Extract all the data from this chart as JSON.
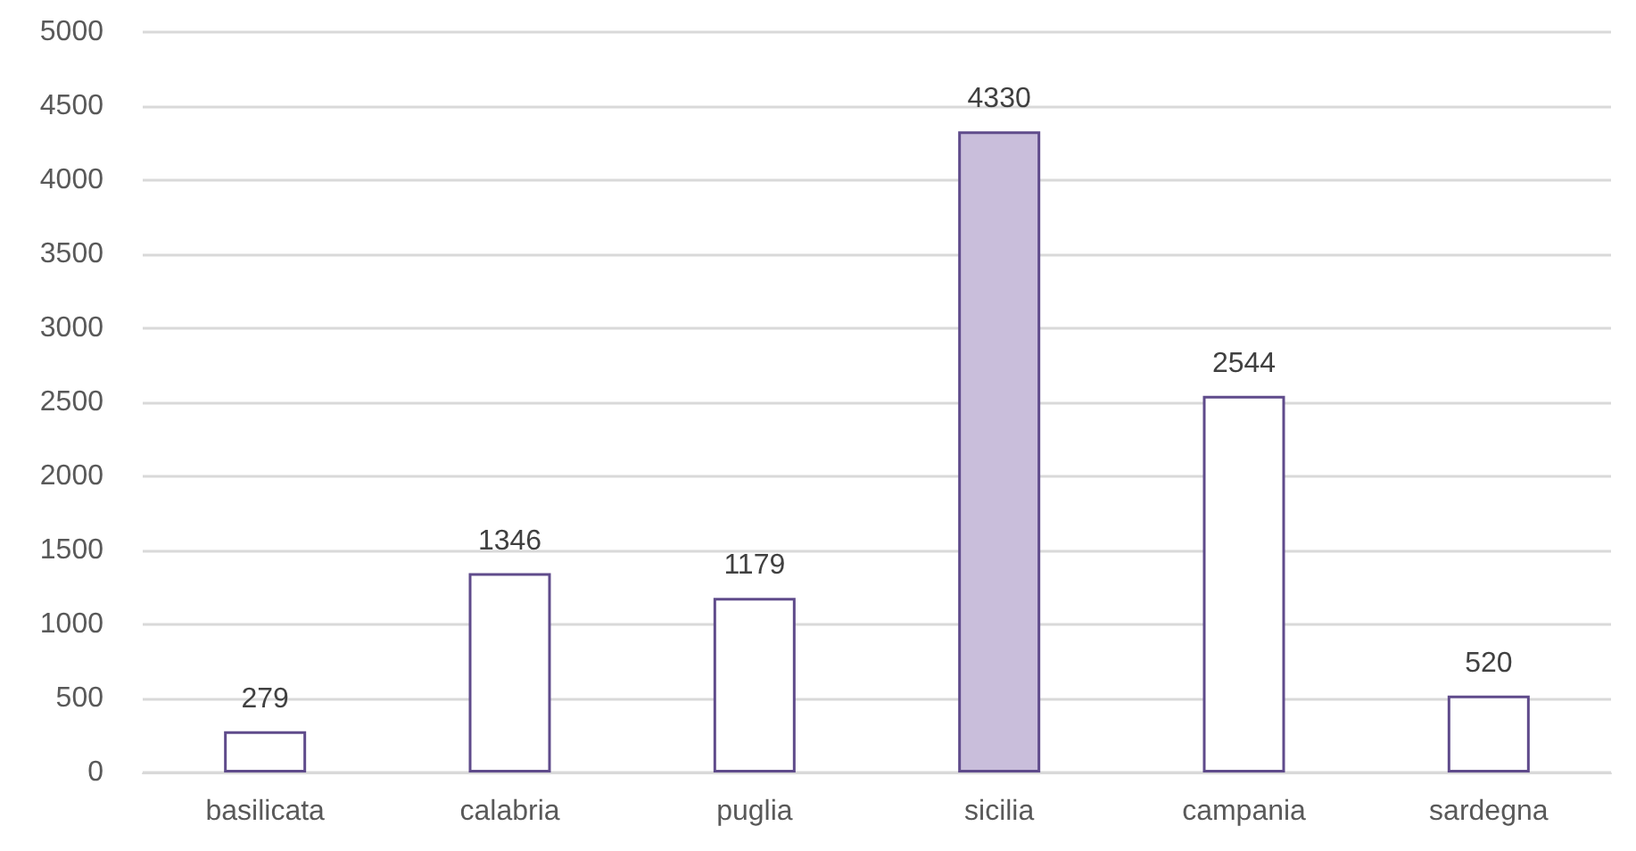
{
  "chart_data": {
    "type": "bar",
    "categories": [
      "basilicata",
      "calabria",
      "puglia",
      "sicilia",
      "campania",
      "sardegna"
    ],
    "values": [
      279,
      1346,
      1179,
      4330,
      2544,
      520
    ],
    "colors": [
      "#ffffff",
      "#ffffff",
      "#ffffff",
      "#c9bedb",
      "#ffffff",
      "#ffffff"
    ],
    "ylim": [
      0,
      5000
    ],
    "yticks": [
      0,
      500,
      1000,
      1500,
      2000,
      2500,
      3000,
      3500,
      4000,
      4500,
      5000
    ],
    "grid": "y",
    "data_labels": true
  }
}
